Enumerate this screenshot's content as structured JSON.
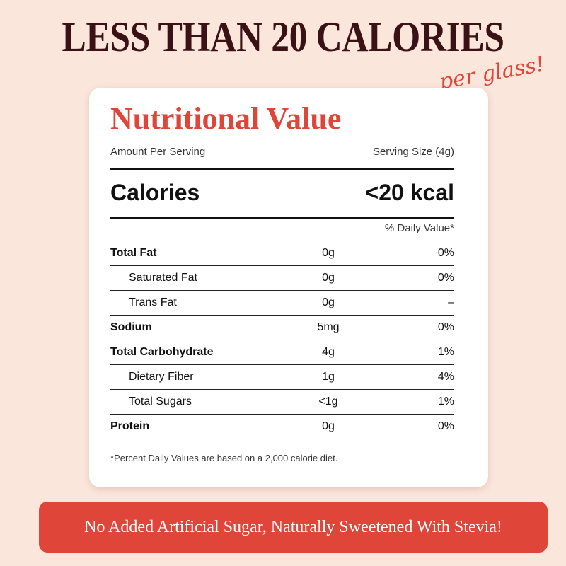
{
  "headline": "LESS THAN 20 CALORIES",
  "subheadline": "per glass!",
  "card": {
    "title": "Nutritional Value",
    "amount_per_serving": "Amount Per Serving",
    "serving_size": "Serving Size (4g)",
    "calories_label": "Calories",
    "calories_value": "<20 kcal",
    "daily_value_header": "% Daily Value*",
    "rows": [
      {
        "label": "Total Fat",
        "amount": "0g",
        "dv": "0%"
      },
      {
        "label": "Saturated Fat",
        "amount": "0g",
        "dv": "0%"
      },
      {
        "label": "Trans Fat",
        "amount": "0g",
        "dv": "–"
      },
      {
        "label": "Sodium",
        "amount": "5mg",
        "dv": "0%"
      },
      {
        "label": "Total Carbohydrate",
        "amount": "4g",
        "dv": "1%"
      },
      {
        "label": "Dietary Fiber",
        "amount": "1g",
        "dv": "4%"
      },
      {
        "label": "Total Sugars",
        "amount": "<1g",
        "dv": "1%"
      },
      {
        "label": "Protein",
        "amount": "0g",
        "dv": "0%"
      }
    ],
    "footnote": "*Percent Daily Values are based on a 2,000 calorie diet."
  },
  "banner": "No Added Artificial Sugar, Naturally Sweetened With Stevia!",
  "colors": {
    "accent": "#e0453a",
    "headline": "#3a1114",
    "background": "#fbe6dc"
  }
}
